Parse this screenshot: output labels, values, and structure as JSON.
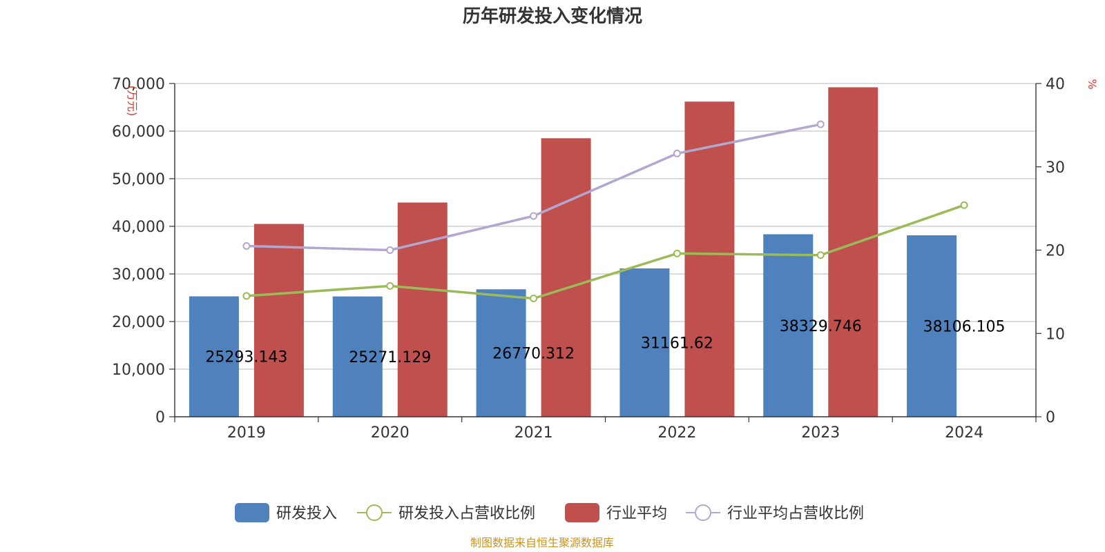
{
  "chart_data": {
    "type": "bar",
    "title": "历年研发投入变化情况",
    "categories": [
      "2019",
      "2020",
      "2021",
      "2022",
      "2023",
      "2024"
    ],
    "left_axis": {
      "unit": "(万元)",
      "ylim": [
        0,
        70000
      ],
      "ticks": [
        0,
        10000,
        20000,
        30000,
        40000,
        50000,
        60000,
        70000
      ],
      "tick_labels": [
        "0",
        "10,000",
        "20,000",
        "30,000",
        "40,000",
        "50,000",
        "60,000",
        "70,000"
      ]
    },
    "right_axis": {
      "unit": "%",
      "ylim": [
        0,
        40
      ],
      "ticks": [
        0,
        10,
        20,
        30,
        40
      ],
      "tick_labels": [
        "0",
        "10",
        "20",
        "30",
        "40"
      ]
    },
    "series": [
      {
        "name": "研发投入",
        "kind": "bar",
        "axis": "left",
        "color": "#4f81bd",
        "values": [
          25293.143,
          25271.129,
          26770.312,
          31161.62,
          38329.746,
          38106.105
        ],
        "labels": [
          "25293.143",
          "25271.129",
          "26770.312",
          "31161.62",
          "38329.746",
          "38106.105"
        ]
      },
      {
        "name": "研发投入占营收比例",
        "kind": "line",
        "axis": "right",
        "color": "#9bbb59",
        "values": [
          14.5,
          15.7,
          14.2,
          19.6,
          19.4,
          25.4
        ]
      },
      {
        "name": "行业平均",
        "kind": "bar",
        "axis": "left",
        "color": "#c0504d",
        "values": [
          40500,
          45000,
          58500,
          66200,
          69200,
          null
        ]
      },
      {
        "name": "行业平均占营收比例",
        "kind": "line",
        "axis": "right",
        "color": "#b3a6cf",
        "values": [
          20.5,
          20.0,
          24.1,
          31.6,
          35.1,
          null
        ]
      }
    ],
    "legend_position": "bottom",
    "grid": true
  },
  "source_note": "制图数据来自恒生聚源数据库"
}
